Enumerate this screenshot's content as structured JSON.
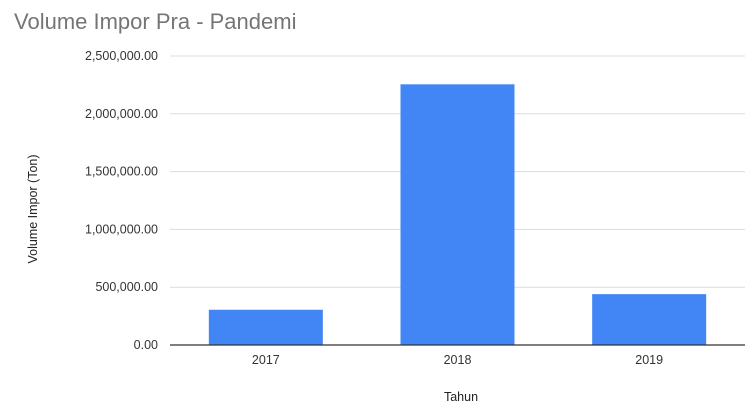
{
  "chart_data": {
    "type": "bar",
    "title": "Volume Impor Pra - Pandemi",
    "xlabel": "Tahun",
    "ylabel": "Volume Impor (Ton)",
    "categories": [
      "2017",
      "2018",
      "2019"
    ],
    "values": [
      305000,
      2255000,
      440000
    ],
    "ylim": [
      0,
      2500000
    ],
    "yticks": [
      0,
      500000,
      1000000,
      1500000,
      2000000,
      2500000
    ],
    "ytick_labels": [
      "0.00",
      "500,000.00",
      "1,000,000.00",
      "1,500,000.00",
      "2,000,000.00",
      "2,500,000.00"
    ],
    "grid": true,
    "legend": "none",
    "bar_color": "#4285f4"
  }
}
